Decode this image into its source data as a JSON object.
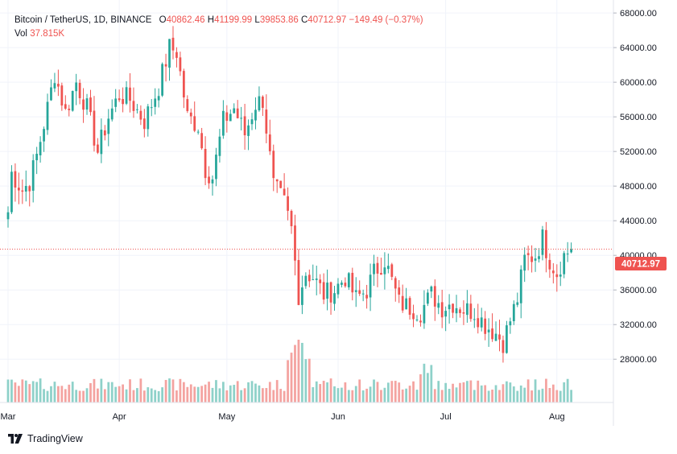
{
  "header": {
    "symbol": "Bitcoin / TetherUS, 1D, BINANCE",
    "open_label": "O",
    "open": "40862.46",
    "high_label": "H",
    "high": "41199.99",
    "low_label": "L",
    "low": "39853.86",
    "close_label": "C",
    "close": "40712.97",
    "change": "−149.49 (−0.37%)",
    "volume_label": "Vol",
    "volume": "37.815K"
  },
  "brand": {
    "name": "TradingView"
  },
  "colors": {
    "up": "#26a69a",
    "down": "#ef5350",
    "up_volume": "#8ed1c9",
    "down_volume": "#f4a3a0",
    "grid": "#f0f3fa",
    "price_line": "#ef5350"
  },
  "chart_data": {
    "type": "candlestick",
    "title": "Bitcoin / TetherUS, 1D, BINANCE",
    "ylim": [
      23000,
      69500
    ],
    "y_ticks": [
      "68000.00",
      "64000.00",
      "60000.00",
      "56000.00",
      "52000.00",
      "48000.00",
      "44000.00",
      "40000.00",
      "36000.00",
      "32000.00",
      "28000.00"
    ],
    "x_ticks": [
      {
        "label": "Mar",
        "index": 0
      },
      {
        "label": "Apr",
        "index": 31
      },
      {
        "label": "May",
        "index": 61
      },
      {
        "label": "Jun",
        "index": 92
      },
      {
        "label": "Jul",
        "index": 122
      },
      {
        "label": "Aug",
        "index": 153
      }
    ],
    "last_price": "40712.97",
    "last_index": 157,
    "total_slots": 171,
    "anchors": [
      [
        0,
        45000
      ],
      [
        1,
        49500
      ],
      [
        4,
        47500
      ],
      [
        6,
        48500
      ],
      [
        8,
        51500
      ],
      [
        11,
        57000
      ],
      [
        13,
        61000
      ],
      [
        16,
        56500
      ],
      [
        19,
        60000
      ],
      [
        22,
        57000
      ],
      [
        25,
        52000
      ],
      [
        28,
        56000
      ],
      [
        31,
        58500
      ],
      [
        34,
        58000
      ],
      [
        38,
        55500
      ],
      [
        42,
        59500
      ],
      [
        45,
        64000
      ],
      [
        47,
        63500
      ],
      [
        50,
        56000
      ],
      [
        53,
        55000
      ],
      [
        55,
        50000
      ],
      [
        57,
        49000
      ],
      [
        60,
        55500
      ],
      [
        63,
        57000
      ],
      [
        66,
        54000
      ],
      [
        69,
        57500
      ],
      [
        71,
        58000
      ],
      [
        74,
        48000
      ],
      [
        77,
        46000
      ],
      [
        79,
        43000
      ],
      [
        81,
        35500
      ],
      [
        83,
        38000
      ],
      [
        85,
        37500
      ],
      [
        88,
        35500
      ],
      [
        91,
        36000
      ],
      [
        94,
        37500
      ],
      [
        97,
        35000
      ],
      [
        100,
        36000
      ],
      [
        102,
        38000
      ],
      [
        105,
        39500
      ],
      [
        107,
        37000
      ],
      [
        109,
        34500
      ],
      [
        112,
        34000
      ],
      [
        115,
        33500
      ],
      [
        118,
        35500
      ],
      [
        121,
        34000
      ],
      [
        124,
        34500
      ],
      [
        127,
        33800
      ],
      [
        130,
        33500
      ],
      [
        133,
        32000
      ],
      [
        136,
        31000
      ],
      [
        138,
        30000
      ],
      [
        140,
        32500
      ],
      [
        142,
        35000
      ],
      [
        144,
        39500
      ],
      [
        147,
        40000
      ],
      [
        149,
        42000
      ],
      [
        151,
        39500
      ],
      [
        153,
        38000
      ],
      [
        155,
        40000
      ],
      [
        157,
        40712.97
      ]
    ]
  }
}
